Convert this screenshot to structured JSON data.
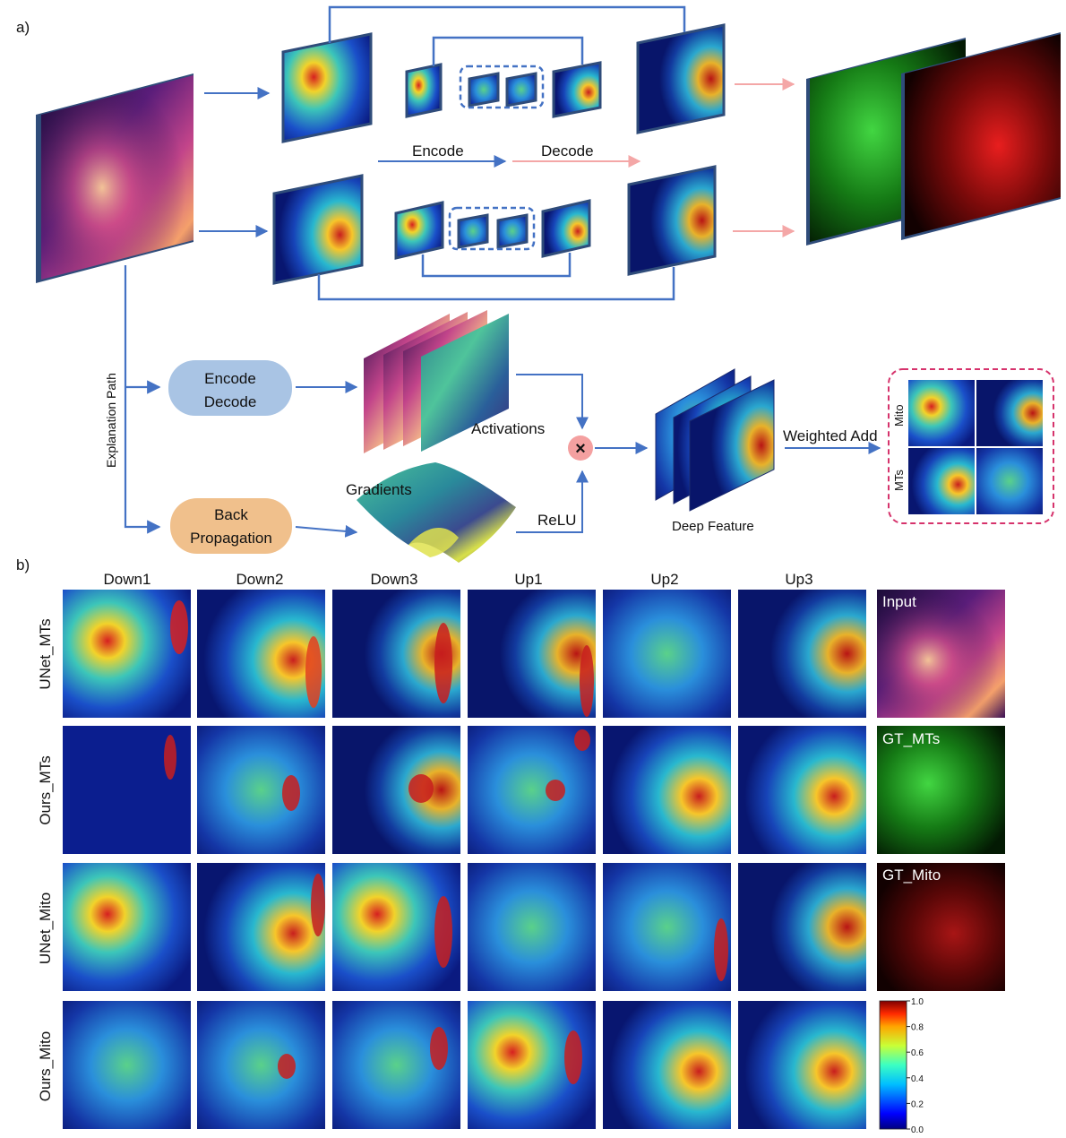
{
  "panels": {
    "a_label": "a)",
    "b_label": "b)"
  },
  "arch": {
    "encode_label": "Encode",
    "decode_label": "Decode",
    "explanation_path": "Explanation Path",
    "encode_decode_box": [
      "Encode",
      "Decode"
    ],
    "backprop_box": [
      "Back",
      "Propagation"
    ],
    "activations": "Activations",
    "gradients": "Gradients",
    "relu": "ReLU",
    "multiply_symbol": "×",
    "deep_feature": "Deep Feature",
    "weighted_add": "Weighted Add",
    "mito_label": "Mito",
    "mts_label": "MTs"
  },
  "grid": {
    "columns": [
      "Down1",
      "Down2",
      "Down3",
      "Up1",
      "Up2",
      "Up3"
    ],
    "rows": [
      "UNet_MTs",
      "Ours_MTs",
      "UNet_Mito",
      "Ours_Mito"
    ],
    "reference": [
      "Input",
      "GT_MTs",
      "GT_Mito"
    ]
  },
  "colorbar": {
    "ticks": [
      "1.0",
      "0.8",
      "0.6",
      "0.4",
      "0.2",
      "0.0"
    ]
  },
  "colors": {
    "arrow_blue": "#4472c4",
    "arrow_pink": "#f4a7a7",
    "box_blue": "#a9c4e4",
    "box_orange": "#f0c08c",
    "heat_bg": "#0b1e8f",
    "dash_pink": "#d6336c"
  }
}
